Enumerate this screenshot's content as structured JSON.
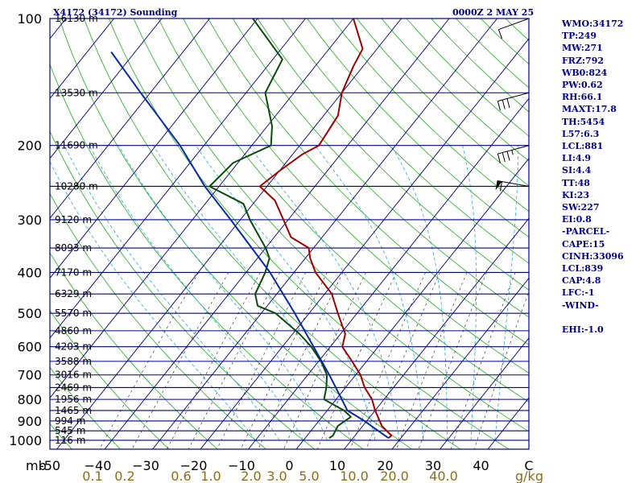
{
  "title_left": "X4172 (34172) Sounding",
  "title_right": "0000Z  2 MAY 25",
  "axis_unit": "mb",
  "mixing_unit": "g/kg",
  "colors": {
    "frame": "#000080",
    "isobar": "#00008b",
    "isotherm": "#000080",
    "dry_adiabat": "#22aa22",
    "moist_adiabat": "#2ba7d8",
    "mixing_ratio": "#3a3a3a",
    "temperature": "#a00000",
    "dewpoint": "#0b4a0b",
    "parcel": "#0a2aa0",
    "text_blue": "#00008b",
    "text_tan": "#8b6d1a"
  },
  "sidebar": [
    "WMO:34172",
    "TP:249",
    "MW:271",
    "FRZ:792",
    "WB0:824",
    "PW:0.62",
    "RH:66.1",
    "MAXT:17.8",
    "TH:5454",
    "L57:6.3",
    "LCL:881",
    "LI:4.9",
    "SI:4.4",
    "TT:48",
    "KI:23",
    "SW:227",
    "EI:0.8",
    "-PARCEL-",
    "CAPE:15",
    "CINH:33096",
    "LCL:839",
    "CAP:4.8",
    "LFC:-1",
    "-WIND-",
    "",
    "EHI:-1.0"
  ],
  "chart_data": {
    "type": "line",
    "pressure_ticks": [
      100,
      200,
      300,
      400,
      500,
      600,
      700,
      800,
      900,
      1000
    ],
    "temperature_ticks": [
      -50,
      -40,
      -30,
      -20,
      -10,
      0,
      10,
      20,
      30,
      40,
      50
    ],
    "temperature_tick_labels": [
      "-50",
      "−40",
      "−30",
      "−20",
      "−10",
      "0",
      "10",
      "20",
      "30",
      "40",
      "C"
    ],
    "mixing_ratio_labels": [
      "0.1",
      "0.2",
      "0.6",
      "1.0",
      "2.0",
      "3.0",
      "5.0",
      "10.0",
      "20.0",
      "40.0"
    ],
    "height_levels": [
      {
        "p": 100,
        "label": "16130 m"
      },
      {
        "p": 150,
        "label": "13530 m"
      },
      {
        "p": 200,
        "label": "11690 m"
      },
      {
        "p": 250,
        "label": "10280 m"
      },
      {
        "p": 300,
        "label": "9120 m"
      },
      {
        "p": 350,
        "label": "8093 m"
      },
      {
        "p": 400,
        "label": "7170 m"
      },
      {
        "p": 450,
        "label": "6329 m"
      },
      {
        "p": 500,
        "label": "5570 m"
      },
      {
        "p": 550,
        "label": "4860 m"
      },
      {
        "p": 600,
        "label": "4203 m"
      },
      {
        "p": 650,
        "label": "3588 m"
      },
      {
        "p": 700,
        "label": "3016 m"
      },
      {
        "p": 750,
        "label": "2469 m"
      },
      {
        "p": 800,
        "label": "1956 m"
      },
      {
        "p": 850,
        "label": "1465 m"
      },
      {
        "p": 900,
        "label": "994 m"
      },
      {
        "p": 950,
        "label": "545 m"
      },
      {
        "p": 1000,
        "label": "116 m"
      }
    ],
    "series": [
      {
        "key": "temperature",
        "points": [
          {
            "p": 988,
            "t": 17.4
          },
          {
            "p": 975,
            "t": 17.6
          },
          {
            "p": 925,
            "t": 14.0
          },
          {
            "p": 850,
            "t": 10.0
          },
          {
            "p": 800,
            "t": 7.5
          },
          {
            "p": 750,
            "t": 4.0
          },
          {
            "p": 700,
            "t": 1.0
          },
          {
            "p": 650,
            "t": -3.0
          },
          {
            "p": 600,
            "t": -7.5
          },
          {
            "p": 560,
            "t": -9.0
          },
          {
            "p": 500,
            "t": -14.0
          },
          {
            "p": 450,
            "t": -18.5
          },
          {
            "p": 400,
            "t": -25.5
          },
          {
            "p": 370,
            "t": -29.0
          },
          {
            "p": 350,
            "t": -31.0
          },
          {
            "p": 330,
            "t": -36.5
          },
          {
            "p": 300,
            "t": -41.0
          },
          {
            "p": 270,
            "t": -46.0
          },
          {
            "p": 250,
            "t": -51.5
          },
          {
            "p": 230,
            "t": -50.0
          },
          {
            "p": 210,
            "t": -48.0
          },
          {
            "p": 200,
            "t": -46.0
          },
          {
            "p": 170,
            "t": -47.0
          },
          {
            "p": 150,
            "t": -50.0
          },
          {
            "p": 130,
            "t": -52.0
          },
          {
            "p": 118,
            "t": -53.0
          },
          {
            "p": 100,
            "t": -60.0
          }
        ]
      },
      {
        "key": "dewpoint",
        "points": [
          {
            "p": 988,
            "t": 5.0
          },
          {
            "p": 975,
            "t": 5.4
          },
          {
            "p": 925,
            "t": 4.8
          },
          {
            "p": 880,
            "t": 6.0
          },
          {
            "p": 850,
            "t": 3.5
          },
          {
            "p": 800,
            "t": -2.5
          },
          {
            "p": 750,
            "t": -4.0
          },
          {
            "p": 700,
            "t": -6.0
          },
          {
            "p": 650,
            "t": -9.5
          },
          {
            "p": 600,
            "t": -14.0
          },
          {
            "p": 560,
            "t": -18.5
          },
          {
            "p": 500,
            "t": -27.0
          },
          {
            "p": 480,
            "t": -32.0
          },
          {
            "p": 450,
            "t": -34.5
          },
          {
            "p": 400,
            "t": -36.0
          },
          {
            "p": 370,
            "t": -37.5
          },
          {
            "p": 350,
            "t": -40.0
          },
          {
            "p": 300,
            "t": -48.0
          },
          {
            "p": 275,
            "t": -52.0
          },
          {
            "p": 250,
            "t": -62.0
          },
          {
            "p": 220,
            "t": -61.0
          },
          {
            "p": 200,
            "t": -56.0
          },
          {
            "p": 180,
            "t": -59.0
          },
          {
            "p": 150,
            "t": -66.0
          },
          {
            "p": 125,
            "t": -68.0
          },
          {
            "p": 100,
            "t": -81.0
          }
        ]
      },
      {
        "key": "parcel",
        "points": [
          {
            "p": 988,
            "t": 17.4
          },
          {
            "p": 900,
            "t": 9.5
          },
          {
            "p": 850,
            "t": 4.2
          },
          {
            "p": 800,
            "t": 1.2
          },
          {
            "p": 700,
            "t": -5.5
          },
          {
            "p": 600,
            "t": -13.5
          },
          {
            "p": 500,
            "t": -23.0
          },
          {
            "p": 400,
            "t": -35.0
          },
          {
            "p": 300,
            "t": -52.0
          },
          {
            "p": 250,
            "t": -63.0
          },
          {
            "p": 200,
            "t": -75.0
          },
          {
            "p": 150,
            "t": -92.0
          },
          {
            "p": 120,
            "t": -105.0
          }
        ]
      }
    ],
    "wind_barbs": [
      {
        "p": 100,
        "dir": 250,
        "kt": 10
      },
      {
        "p": 150,
        "dir": 255,
        "kt": 30
      },
      {
        "p": 200,
        "dir": 255,
        "kt": 35
      },
      {
        "p": 250,
        "dir": 280,
        "kt": 60
      }
    ]
  }
}
